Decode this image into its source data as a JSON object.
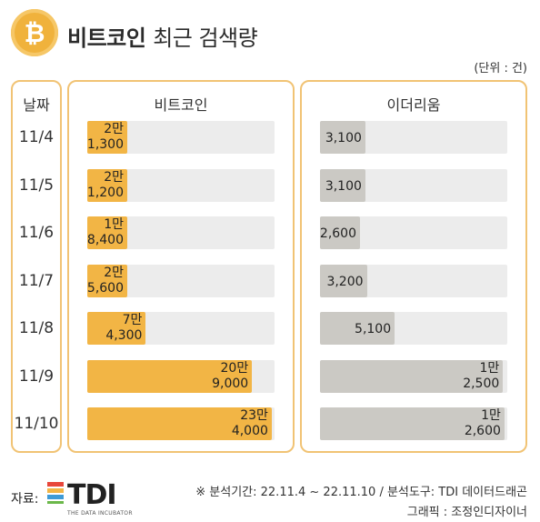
{
  "title": {
    "main": "비트코인",
    "rest": "최근 검색량"
  },
  "unit": "(단위 : 건)",
  "date_header": "날짜",
  "chart_data": {
    "type": "bar",
    "orientation": "horizontal",
    "categories": [
      "11/4",
      "11/5",
      "11/6",
      "11/7",
      "11/8",
      "11/9",
      "11/10"
    ],
    "series": [
      {
        "name": "비트코인",
        "values": [
          21300,
          21200,
          18400,
          25600,
          74300,
          209000,
          234000
        ],
        "labels": [
          [
            "2만",
            "1,300"
          ],
          [
            "2만",
            "1,200"
          ],
          [
            "1만",
            "8,400"
          ],
          [
            "2만",
            "5,600"
          ],
          [
            "7만",
            "4,300"
          ],
          [
            "20만",
            "9,000"
          ],
          [
            "23만",
            "4,000"
          ]
        ],
        "color": "#f2b545"
      },
      {
        "name": "이더리움",
        "values": [
          3100,
          3100,
          2600,
          3200,
          5100,
          12500,
          12600
        ],
        "labels": [
          [
            "3,100"
          ],
          [
            "3,100"
          ],
          [
            "2,600"
          ],
          [
            "3,200"
          ],
          [
            "5,100"
          ],
          [
            "1만",
            "2,500"
          ],
          [
            "1만",
            "2,600"
          ]
        ],
        "color": "#cbc9c4"
      }
    ]
  },
  "footer": {
    "source_label": "자료:",
    "logo_text": "TDI",
    "logo_sub": "THE DATA INCUBATOR",
    "period": "※ 분석기간: 22.11.4 ~ 22.11.10 / 분석도구: TDI 데이터드래곤",
    "graphic": "그래픽 : 조정인디자이너"
  },
  "colors": {
    "accent": "#f2b545",
    "panel_border": "#f1c374",
    "track": "#ececec",
    "eth_fill": "#cbc9c4"
  },
  "icons": {
    "coin": "bitcoin-icon",
    "logo": "tdi-logo-icon"
  }
}
